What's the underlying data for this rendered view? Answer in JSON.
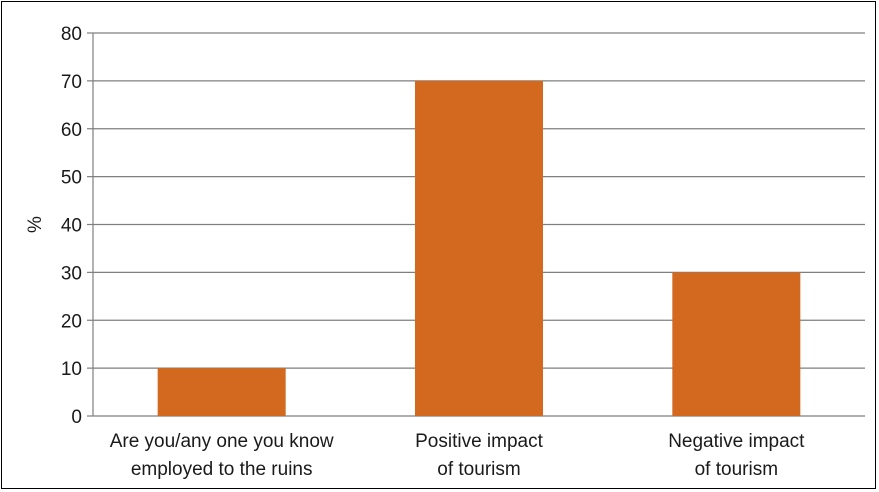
{
  "chart_data": {
    "type": "bar",
    "title": "",
    "xlabel": "",
    "ylabel": "%",
    "ylim": [
      0,
      80
    ],
    "yticks": [
      0,
      10,
      20,
      30,
      40,
      50,
      60,
      70,
      80
    ],
    "grid": true,
    "legend": "none",
    "categories": [
      [
        "Are you/any one you know",
        "employed to the ruins"
      ],
      [
        "Positive impact",
        "of tourism"
      ],
      [
        "Negative impact",
        "of tourism"
      ]
    ],
    "values": [
      10,
      70,
      30
    ],
    "bar_color": "#D2691E",
    "grid_color": "#7f7f7f"
  }
}
